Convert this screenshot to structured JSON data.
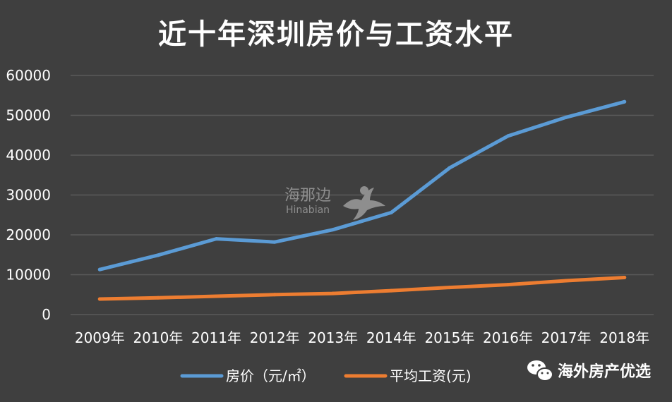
{
  "chart_data": {
    "type": "line",
    "title": "近十年深圳房价与工资水平",
    "categories": [
      "2009年",
      "2010年",
      "2011年",
      "2012年",
      "2013年",
      "2014年",
      "2015年",
      "2016年",
      "2017年",
      "2018年"
    ],
    "ylim": [
      0,
      60000
    ],
    "yticks": [
      "0",
      "10000",
      "20000",
      "30000",
      "40000",
      "50000",
      "60000"
    ],
    "grid": true,
    "legend_position": "bottom",
    "series": [
      {
        "name": "房价（元/㎡）",
        "color": "#5b9bd5",
        "values": [
          11300,
          14900,
          19000,
          18200,
          21300,
          25600,
          36800,
          44800,
          49500,
          53400
        ]
      },
      {
        "name": "平均工资(元)",
        "color": "#ed7d31",
        "values": [
          3900,
          4200,
          4600,
          5000,
          5300,
          6000,
          6800,
          7500,
          8500,
          9300
        ]
      }
    ]
  },
  "watermark": {
    "cn": "海那边",
    "en": "Hinabian"
  },
  "brand": {
    "name": "海外房产优选",
    "icon": "wechat-icon"
  }
}
